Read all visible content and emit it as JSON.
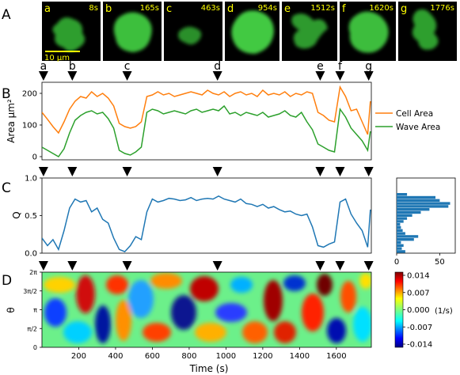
{
  "panel_labels": [
    "A",
    "B",
    "C",
    "D"
  ],
  "frames": [
    {
      "letter": "a",
      "time": "8s"
    },
    {
      "letter": "b",
      "time": "165s"
    },
    {
      "letter": "c",
      "time": "463s"
    },
    {
      "letter": "d",
      "time": "954s"
    },
    {
      "letter": "e",
      "time": "1512s"
    },
    {
      "letter": "f",
      "time": "1620s"
    },
    {
      "letter": "g",
      "time": "1776s"
    }
  ],
  "scale_bar": "10 μm",
  "markers": [
    {
      "letter": "a",
      "t": 8
    },
    {
      "letter": "b",
      "t": 165
    },
    {
      "letter": "c",
      "t": 463
    },
    {
      "letter": "d",
      "t": 954
    },
    {
      "letter": "e",
      "t": 1512
    },
    {
      "letter": "f",
      "t": 1620
    },
    {
      "letter": "g",
      "t": 1776
    }
  ],
  "colors": {
    "cell_area": "#ff7f0e",
    "wave_area": "#2ca02c",
    "q": "#1f77b4",
    "marker": "#000000"
  },
  "chart_data": [
    {
      "panel": "B",
      "type": "line",
      "xlim": [
        0,
        1790
      ],
      "ylim": [
        -10,
        235
      ],
      "ylabel": "Area μm²",
      "yticks": [
        "0",
        "100",
        "200"
      ],
      "legend_position": "right",
      "series": [
        {
          "name": "Cell Area",
          "x": [
            0,
            30,
            60,
            90,
            120,
            150,
            180,
            210,
            240,
            270,
            300,
            330,
            360,
            390,
            420,
            450,
            480,
            510,
            540,
            570,
            600,
            630,
            660,
            690,
            720,
            750,
            780,
            810,
            840,
            870,
            900,
            930,
            960,
            990,
            1020,
            1050,
            1080,
            1110,
            1140,
            1170,
            1200,
            1230,
            1260,
            1290,
            1320,
            1350,
            1380,
            1410,
            1440,
            1470,
            1500,
            1530,
            1560,
            1590,
            1620,
            1650,
            1680,
            1710,
            1740,
            1770,
            1785
          ],
          "values": [
            140,
            118,
            95,
            75,
            110,
            150,
            175,
            190,
            185,
            205,
            190,
            200,
            185,
            160,
            105,
            95,
            90,
            95,
            110,
            190,
            195,
            205,
            195,
            200,
            190,
            195,
            200,
            205,
            200,
            195,
            210,
            200,
            195,
            205,
            190,
            200,
            205,
            195,
            200,
            190,
            210,
            195,
            200,
            195,
            205,
            190,
            200,
            195,
            205,
            200,
            140,
            130,
            115,
            110,
            220,
            190,
            145,
            150,
            110,
            70,
            175
          ]
        },
        {
          "name": "Wave Area",
          "x": [
            0,
            30,
            60,
            90,
            120,
            150,
            180,
            210,
            240,
            270,
            300,
            330,
            360,
            390,
            420,
            450,
            480,
            510,
            540,
            570,
            600,
            630,
            660,
            690,
            720,
            750,
            780,
            810,
            840,
            870,
            900,
            930,
            960,
            990,
            1020,
            1050,
            1080,
            1110,
            1140,
            1170,
            1200,
            1230,
            1260,
            1290,
            1320,
            1350,
            1380,
            1410,
            1440,
            1470,
            1500,
            1530,
            1560,
            1590,
            1620,
            1650,
            1680,
            1710,
            1740,
            1770,
            1785
          ],
          "values": [
            30,
            20,
            10,
            0,
            25,
            75,
            115,
            130,
            140,
            145,
            135,
            140,
            120,
            90,
            20,
            10,
            5,
            15,
            30,
            140,
            150,
            145,
            135,
            140,
            145,
            140,
            135,
            145,
            150,
            140,
            145,
            150,
            145,
            160,
            135,
            140,
            130,
            140,
            135,
            130,
            140,
            125,
            130,
            135,
            145,
            130,
            125,
            140,
            110,
            85,
            40,
            30,
            20,
            15,
            150,
            125,
            90,
            70,
            50,
            20,
            80
          ]
        }
      ]
    },
    {
      "panel": "C",
      "type": "line",
      "xlim": [
        0,
        1790
      ],
      "ylim": [
        0,
        1
      ],
      "ylabel": "Q",
      "yticks": [
        "0.0",
        "0.5",
        "1.0"
      ],
      "series": [
        {
          "x": [
            0,
            30,
            60,
            90,
            120,
            150,
            180,
            210,
            240,
            270,
            300,
            330,
            360,
            390,
            420,
            450,
            480,
            510,
            540,
            570,
            600,
            630,
            660,
            690,
            720,
            750,
            780,
            810,
            840,
            870,
            900,
            930,
            960,
            990,
            1020,
            1050,
            1080,
            1110,
            1140,
            1170,
            1200,
            1230,
            1260,
            1290,
            1320,
            1350,
            1380,
            1410,
            1440,
            1470,
            1500,
            1530,
            1560,
            1590,
            1620,
            1650,
            1680,
            1710,
            1740,
            1770,
            1785
          ],
          "values": [
            0.2,
            0.1,
            0.18,
            0.05,
            0.3,
            0.6,
            0.72,
            0.68,
            0.7,
            0.55,
            0.6,
            0.45,
            0.4,
            0.2,
            0.05,
            0.02,
            0.1,
            0.22,
            0.18,
            0.55,
            0.72,
            0.68,
            0.7,
            0.73,
            0.72,
            0.7,
            0.71,
            0.74,
            0.7,
            0.72,
            0.73,
            0.72,
            0.76,
            0.72,
            0.7,
            0.68,
            0.72,
            0.66,
            0.65,
            0.62,
            0.65,
            0.6,
            0.62,
            0.58,
            0.55,
            0.56,
            0.52,
            0.5,
            0.52,
            0.35,
            0.1,
            0.08,
            0.12,
            0.15,
            0.68,
            0.72,
            0.52,
            0.4,
            0.3,
            0.08,
            0.58
          ]
        }
      ]
    },
    {
      "panel": "C-histogram",
      "type": "bar",
      "orientation": "horizontal",
      "xlim": [
        0,
        68
      ],
      "xticks": [
        "0",
        "50"
      ],
      "bins": [
        0.02,
        0.06,
        0.1,
        0.14,
        0.18,
        0.22,
        0.26,
        0.3,
        0.34,
        0.38,
        0.42,
        0.46,
        0.5,
        0.54,
        0.58,
        0.62,
        0.66,
        0.7,
        0.74,
        0.78
      ],
      "values": [
        10,
        6,
        8,
        5,
        20,
        25,
        10,
        7,
        5,
        4,
        8,
        12,
        18,
        28,
        38,
        60,
        62,
        50,
        45,
        12
      ]
    },
    {
      "panel": "D",
      "type": "heatmap",
      "xlabel": "Time (s)",
      "ylabel": "θ",
      "xticks": [
        "200",
        "400",
        "600",
        "800",
        "1000",
        "1200",
        "1400",
        "1600"
      ],
      "yticks": [
        "0",
        "π/2",
        "π",
        "3π/2",
        "2π"
      ],
      "colorbar_ticks": [
        "0.014",
        "0.007",
        "0.000",
        "-0.007",
        "-0.014"
      ],
      "colorbar_unit": "(1/s)"
    }
  ]
}
